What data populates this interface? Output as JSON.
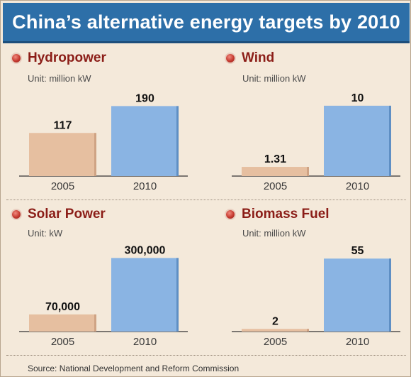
{
  "title": "China’s alternative energy targets by 2010",
  "source": "Source: National Development and Reform Commission",
  "colors": {
    "bar_2005": "#e6bfa0",
    "bar_2005_side": "#cfa384",
    "bar_2010": "#8ab4e3",
    "bar_2010_side": "#5f8fc4",
    "title_bg": "#2d6fa8",
    "panel_title": "#8b1d17"
  },
  "chart_data": [
    {
      "type": "bar",
      "title": "Hydropower",
      "unit": "Unit: million kW",
      "categories": [
        "2005",
        "2010"
      ],
      "values": [
        117,
        190
      ],
      "value_labels": [
        "117",
        "190"
      ],
      "ylim": [
        0,
        210
      ]
    },
    {
      "type": "bar",
      "title": "Wind",
      "unit": "Unit: million kW",
      "categories": [
        "2005",
        "2010"
      ],
      "values": [
        1.31,
        10
      ],
      "value_labels": [
        "1.31",
        "10"
      ],
      "ylim": [
        0,
        11
      ]
    },
    {
      "type": "bar",
      "title": "Solar Power",
      "unit": "Unit: kW",
      "categories": [
        "2005",
        "2010"
      ],
      "values": [
        70000,
        300000
      ],
      "value_labels": [
        "70,000",
        "300,000"
      ],
      "ylim": [
        0,
        330000
      ]
    },
    {
      "type": "bar",
      "title": "Biomass Fuel",
      "unit": "Unit: million kW",
      "categories": [
        "2005",
        "2010"
      ],
      "values": [
        2,
        55
      ],
      "value_labels": [
        "2",
        "55"
      ],
      "ylim": [
        0,
        61
      ]
    }
  ]
}
